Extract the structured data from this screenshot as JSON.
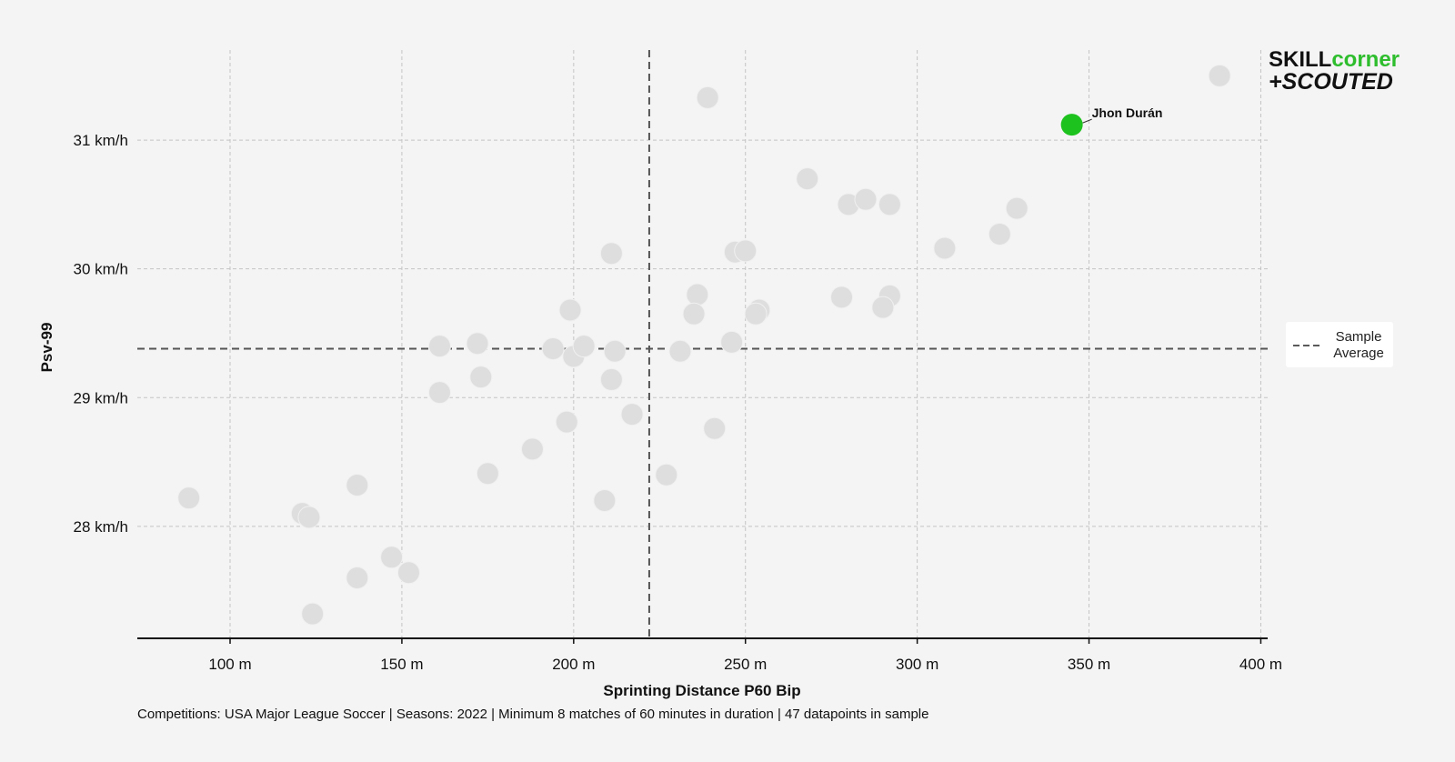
{
  "logo": {
    "line1_a": "SKILL",
    "line1_b": "corner",
    "line2": "+SCOUTED",
    "dark_color": "#111111",
    "accent_color": "#2dbd2d"
  },
  "footnote": "Competitions: USA Major League Soccer | Seasons: 2022 | Minimum 8 matches of 60 minutes in duration | 47 datapoints in sample",
  "chart_data": {
    "type": "scatter",
    "xlabel": "Sprinting Distance P60 Bip",
    "ylabel": "Psv-99",
    "xlim": [
      73,
      402
    ],
    "ylim": [
      27.13,
      31.7
    ],
    "x_ticks": [
      100,
      150,
      200,
      250,
      300,
      350,
      400
    ],
    "x_tick_labels": [
      "100 m",
      "150 m",
      "200 m",
      "250 m",
      "300 m",
      "350 m",
      "400 m"
    ],
    "y_ticks": [
      28,
      29,
      30,
      31
    ],
    "y_tick_labels": [
      "28 km/h",
      "29 km/h",
      "30 km/h",
      "31 km/h"
    ],
    "grid": true,
    "sample_average": {
      "x": 222,
      "y": 29.38,
      "label_line1": "Sample",
      "label_line2": "Average"
    },
    "legend_placement": "right",
    "point_color": "#dedede",
    "highlight_color": "#1ec21e",
    "points": [
      {
        "x": 388,
        "y": 31.5
      },
      {
        "x": 239,
        "y": 31.33
      },
      {
        "x": 268,
        "y": 30.7
      },
      {
        "x": 280,
        "y": 30.5
      },
      {
        "x": 285,
        "y": 30.54
      },
      {
        "x": 292,
        "y": 30.5
      },
      {
        "x": 329,
        "y": 30.47
      },
      {
        "x": 324,
        "y": 30.27
      },
      {
        "x": 308,
        "y": 30.16
      },
      {
        "x": 211,
        "y": 30.12
      },
      {
        "x": 247,
        "y": 30.13
      },
      {
        "x": 250,
        "y": 30.14
      },
      {
        "x": 199,
        "y": 29.68
      },
      {
        "x": 236,
        "y": 29.8
      },
      {
        "x": 235,
        "y": 29.65
      },
      {
        "x": 254,
        "y": 29.68
      },
      {
        "x": 253,
        "y": 29.65
      },
      {
        "x": 278,
        "y": 29.78
      },
      {
        "x": 292,
        "y": 29.79
      },
      {
        "x": 290,
        "y": 29.7
      },
      {
        "x": 161,
        "y": 29.4
      },
      {
        "x": 172,
        "y": 29.42
      },
      {
        "x": 194,
        "y": 29.38
      },
      {
        "x": 200,
        "y": 29.32
      },
      {
        "x": 203,
        "y": 29.4
      },
      {
        "x": 212,
        "y": 29.36
      },
      {
        "x": 231,
        "y": 29.36
      },
      {
        "x": 246,
        "y": 29.43
      },
      {
        "x": 173,
        "y": 29.16
      },
      {
        "x": 211,
        "y": 29.14
      },
      {
        "x": 161,
        "y": 29.04
      },
      {
        "x": 217,
        "y": 28.87
      },
      {
        "x": 198,
        "y": 28.81
      },
      {
        "x": 241,
        "y": 28.76
      },
      {
        "x": 188,
        "y": 28.6
      },
      {
        "x": 175,
        "y": 28.41
      },
      {
        "x": 227,
        "y": 28.4
      },
      {
        "x": 137,
        "y": 28.32
      },
      {
        "x": 88,
        "y": 28.22
      },
      {
        "x": 209,
        "y": 28.2
      },
      {
        "x": 121,
        "y": 28.1
      },
      {
        "x": 123,
        "y": 28.07
      },
      {
        "x": 147,
        "y": 27.76
      },
      {
        "x": 152,
        "y": 27.64
      },
      {
        "x": 137,
        "y": 27.6
      },
      {
        "x": 124,
        "y": 27.32
      }
    ],
    "highlight": {
      "x": 345,
      "y": 31.12,
      "label": "Jhon Durán"
    }
  }
}
